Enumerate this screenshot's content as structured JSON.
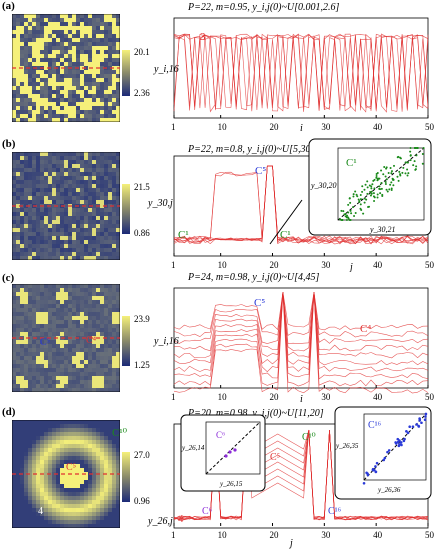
{
  "panels": [
    {
      "tag": "(a)",
      "caption": "P=22, m=0.95, y_i,j(0)~U[0.001,2.6]",
      "cbar_max": "20.1",
      "cbar_min": "2.36",
      "ylabel": "y_i,16",
      "xlabel": "i",
      "cluster_label": "3",
      "heat_axis": {
        "j": "j",
        "i": "i",
        "t1": "1",
        "t50": "50"
      }
    },
    {
      "tag": "(b)",
      "caption": "P=22, m=0.8, y_i,j(0)~U[5,30]",
      "cbar_max": "21.5",
      "cbar_min": "0.86",
      "ylabel": "y_30,j",
      "xlabel": "j",
      "labels": [
        "C¹",
        "C⁵",
        "C¹",
        "C¹",
        "C¹"
      ],
      "inset": {
        "title": "C¹",
        "ylabel": "y_30,20",
        "xlabel": "y_30,21",
        "x1": "1",
        "x2": "20"
      }
    },
    {
      "tag": "(c)",
      "caption": "P=24, m=0.98, y_i,j(0)~U[4,45]",
      "cbar_max": "23.9",
      "cbar_min": "1.25",
      "ylabel": "y_i,16",
      "xlabel": "i",
      "labels": [
        "C⁵",
        "C⁴",
        "C⁵",
        "C⁴"
      ]
    },
    {
      "tag": "(d)",
      "caption": "P=20, m=0.98, y_i,j(0)~U[11,20]",
      "cbar_max": "27.0",
      "cbar_min": "0.96",
      "ylabel": "y_26,j",
      "xlabel": "j",
      "labels": [
        "C¹⁰",
        "C⁵",
        "4",
        "4",
        "C⁶",
        "C³",
        "C⁵",
        "C¹⁰",
        "C¹⁶"
      ],
      "inset1": {
        "title": "C⁶",
        "ylabel": "y_26,14",
        "xlabel": "y_26,15"
      },
      "inset2": {
        "title": "C¹⁶",
        "ylabel": "y_26,35",
        "xlabel": "y_26,36"
      }
    }
  ],
  "xticks": [
    "1",
    "10",
    "20",
    "30",
    "40",
    "50"
  ],
  "colors": {
    "line": "#e03030",
    "heat_low": "#1c2a78",
    "heat_high": "#f5f07a",
    "green": "#1a8a1a",
    "blue": "#2a3ad8"
  }
}
